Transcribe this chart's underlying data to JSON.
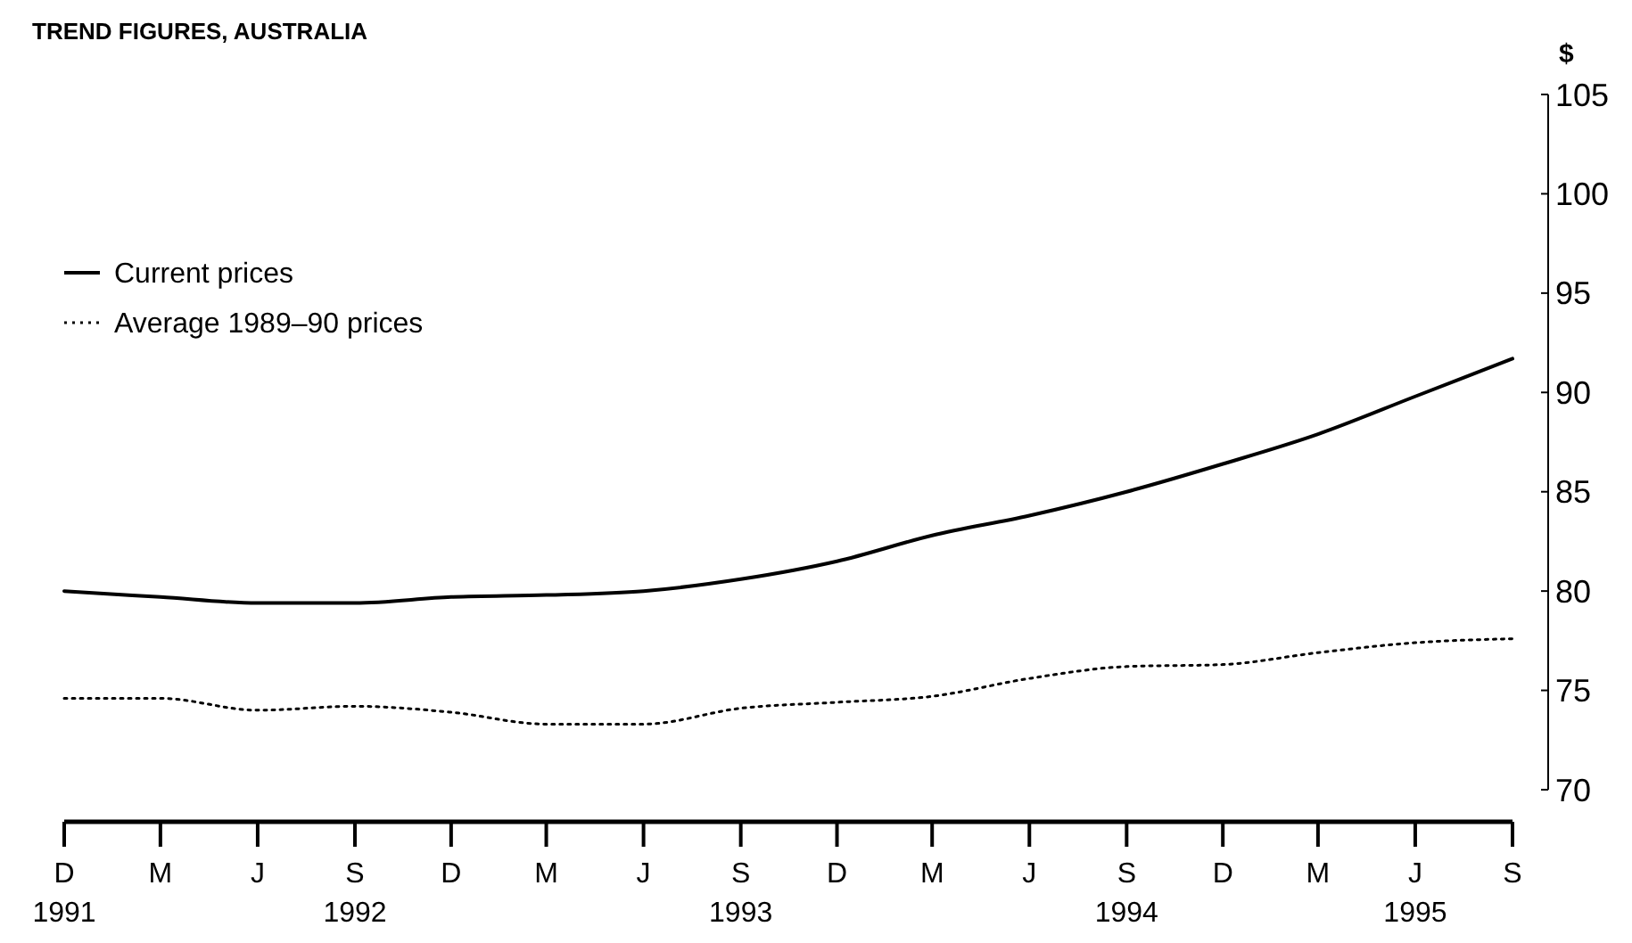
{
  "chart_data": {
    "type": "line",
    "title": "TREND FIGURES, AUSTRALIA",
    "ylabel": "$",
    "x": [
      "1991-12",
      "1992-03",
      "1992-06",
      "1992-09",
      "1992-12",
      "1993-03",
      "1993-06",
      "1993-09",
      "1993-12",
      "1994-03",
      "1994-06",
      "1994-09",
      "1994-12",
      "1995-03",
      "1995-06",
      "1995-09"
    ],
    "series": [
      {
        "name": "Current prices",
        "color": "#000000",
        "line_style": "solid",
        "values": [
          80.0,
          79.7,
          79.4,
          79.4,
          79.7,
          79.8,
          80.0,
          80.6,
          81.5,
          82.8,
          83.8,
          85.0,
          86.4,
          87.9,
          89.8,
          91.7
        ]
      },
      {
        "name": "Average 1989–90 prices",
        "color": "#000000",
        "line_style": "dotted",
        "values": [
          74.6,
          74.6,
          74.0,
          74.2,
          73.9,
          73.3,
          73.3,
          74.1,
          74.4,
          74.7,
          75.6,
          76.2,
          76.3,
          76.9,
          77.4,
          77.6
        ]
      }
    ],
    "xlim": [
      "1991-12",
      "1995-09"
    ],
    "xticks": [
      {
        "value": "1991-12",
        "label": "D\n1991"
      },
      {
        "value": "1992-03",
        "label": "M"
      },
      {
        "value": "1992-06",
        "label": "J"
      },
      {
        "value": "1992-09",
        "label": "S\n1992"
      },
      {
        "value": "1992-12",
        "label": "D"
      },
      {
        "value": "1993-03",
        "label": "M"
      },
      {
        "value": "1993-06",
        "label": "J"
      },
      {
        "value": "1993-09",
        "label": "S\n1993"
      },
      {
        "value": "1993-12",
        "label": "D"
      },
      {
        "value": "1994-03",
        "label": "M"
      },
      {
        "value": "1994-06",
        "label": "J"
      },
      {
        "value": "1994-09",
        "label": "S\n1994"
      },
      {
        "value": "1994-12",
        "label": "D"
      },
      {
        "value": "1995-03",
        "label": "M"
      },
      {
        "value": "1995-06",
        "label": "J\n1995"
      },
      {
        "value": "1995-09",
        "label": "S"
      }
    ],
    "ylim": [
      70,
      105
    ],
    "yticks": [
      70,
      75,
      80,
      85,
      90,
      95,
      100,
      105
    ],
    "legend": "top left",
    "grid": false
  }
}
